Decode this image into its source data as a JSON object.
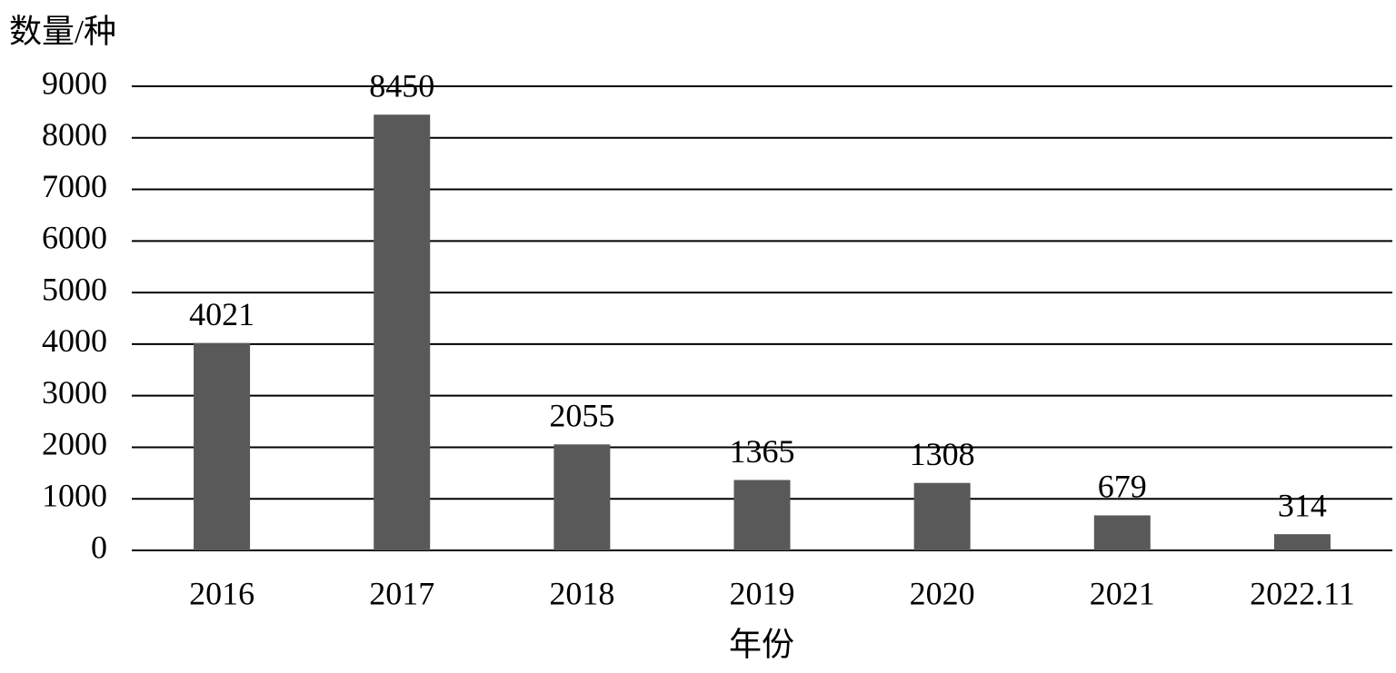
{
  "chart_data": {
    "type": "bar",
    "y_label": "数量/种",
    "x_label": "年份",
    "categories": [
      "2016",
      "2017",
      "2018",
      "2019",
      "2020",
      "2021",
      "2022.11"
    ],
    "values": [
      4021,
      8450,
      2055,
      1365,
      1308,
      679,
      314
    ],
    "color": "#595959",
    "ylim": [
      0,
      9000
    ],
    "yticks": [
      0,
      1000,
      2000,
      3000,
      4000,
      5000,
      6000,
      7000,
      8000,
      9000
    ],
    "grid": true,
    "data_labels": true
  }
}
